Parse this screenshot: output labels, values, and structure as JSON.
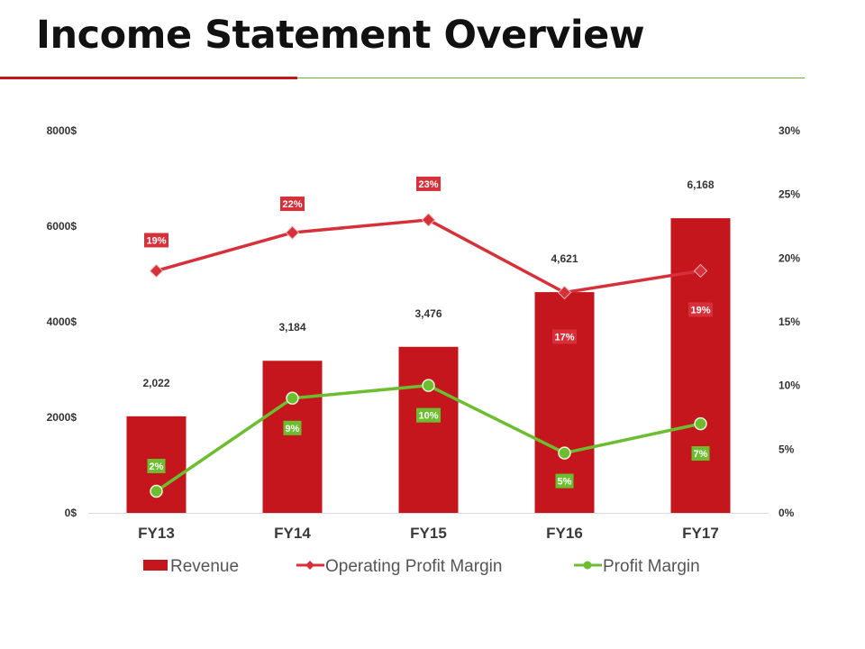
{
  "page": {
    "title": "Income Statement Overview"
  },
  "colors": {
    "title_rule_red": "#c4161c",
    "title_rule_green": "#6aaf3a"
  },
  "chart_data": {
    "type": "bar",
    "categories": [
      "FY13",
      "FY14",
      "FY15",
      "FY16",
      "FY17"
    ],
    "series": [
      {
        "name": "Revenue",
        "type": "bar",
        "axis": "left",
        "color": "#c4161c",
        "values": [
          2022,
          3184,
          3476,
          4621,
          6168
        ],
        "labels": [
          "2,022",
          "3,184",
          "3,476",
          "4,621",
          "6,168"
        ]
      },
      {
        "name": "Operating Profit Margin",
        "type": "line",
        "axis": "right",
        "color": "#d6313a",
        "marker": "diamond",
        "values": [
          19,
          22,
          23,
          17.3,
          19
        ],
        "labels": [
          "19%",
          "22%",
          "23%",
          "17%",
          "19%"
        ]
      },
      {
        "name": "Profit Margin",
        "type": "line",
        "axis": "right",
        "color": "#6cbd30",
        "marker": "circle",
        "values": [
          1.7,
          9,
          10,
          4.7,
          7
        ],
        "labels": [
          "2%",
          "9%",
          "10%",
          "5%",
          "7%"
        ]
      }
    ],
    "y_left": {
      "ylim": [
        0,
        8000
      ],
      "ticks": [
        "0$",
        "2000$",
        "4000$",
        "6000$",
        "8000$"
      ]
    },
    "y_right": {
      "ylim": [
        0,
        30
      ],
      "ticks": [
        "0%",
        "5%",
        "10%",
        "15%",
        "20%",
        "25%",
        "30%"
      ]
    },
    "legend_position": "bottom",
    "grid": false
  }
}
